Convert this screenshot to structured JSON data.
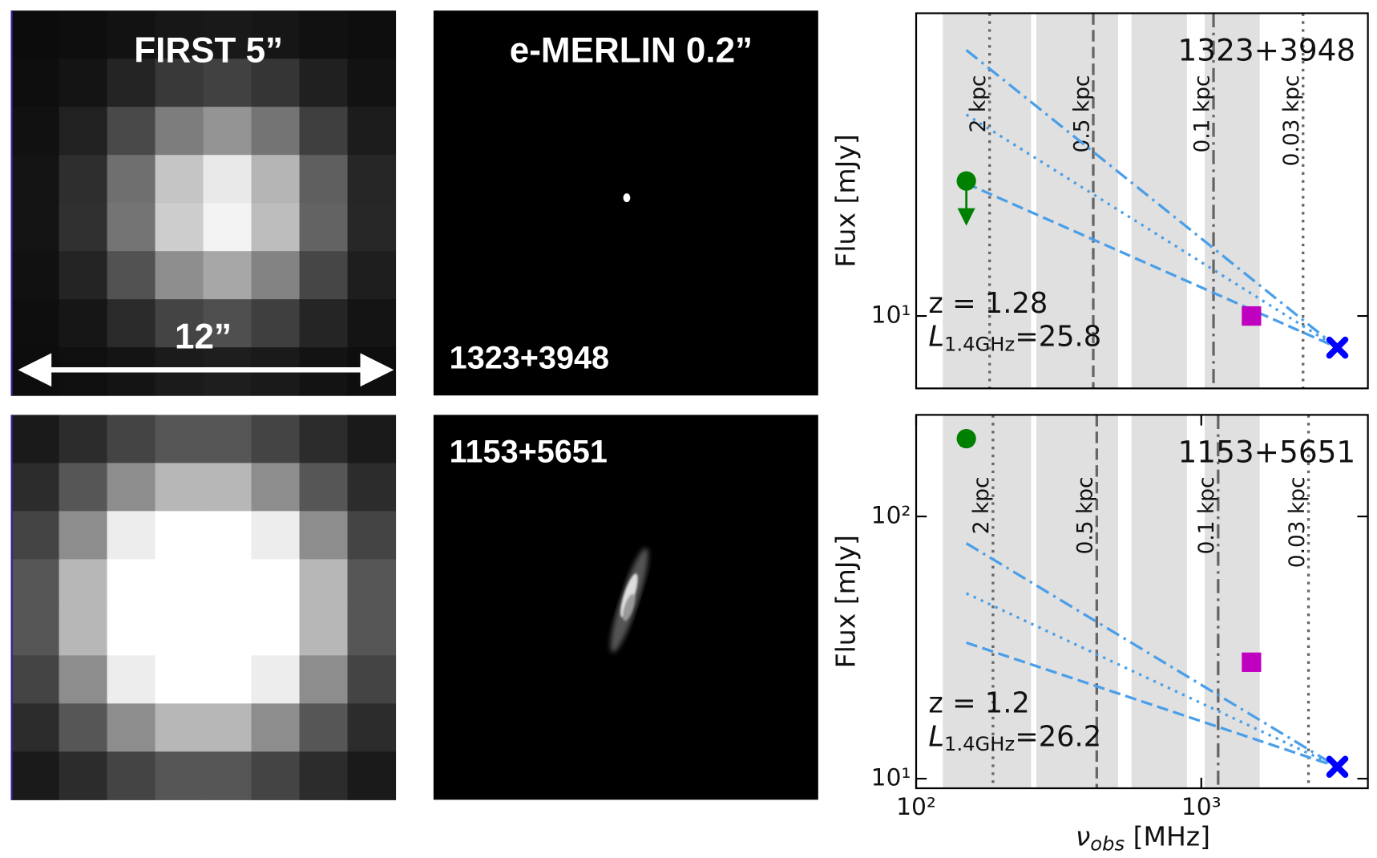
{
  "images": {
    "first_title": "FIRST 5”",
    "merlin_title": "e-MERLIN 0.2”",
    "scale_bar": "12”",
    "top_name": "1323+3948",
    "bottom_name": "1153+5651"
  },
  "chart_data": [
    {
      "type": "scatter",
      "xscale": "log",
      "yscale": "log",
      "ylabel": "Flux [mJy]",
      "label": "1323+3948",
      "redshift": "z = 1.28",
      "luminosity": {
        "symbol": "L",
        "subscript": "1.4GHz",
        "text": "=25.8"
      },
      "xlim": [
        100,
        3840
      ],
      "ylim": [
        6.17,
        75.3
      ],
      "yticks": [
        {
          "value": 10,
          "label": "10¹"
        }
      ],
      "band_color": "#e0e0e0",
      "bands": [
        [
          124,
          253
        ],
        [
          264,
          511
        ],
        [
          569,
          891
        ],
        [
          1028,
          1603
        ]
      ],
      "vlines": [
        {
          "x": 181,
          "label": "2 kpc",
          "style": "dotted"
        },
        {
          "x": 418,
          "label": "0.5 kpc",
          "style": "dashed"
        },
        {
          "x": 1104,
          "label": "0.1 kpc",
          "style": "dashdot"
        },
        {
          "x": 2275,
          "label": "0.03 kpc",
          "style": "dotted"
        }
      ],
      "series": [
        {
          "color": "#4a9fe8",
          "linestyle": "dashdot",
          "x": [
            150,
            3000
          ],
          "values": [
            58.9,
            8.1
          ]
        },
        {
          "color": "#4a9fe8",
          "linestyle": "dotted",
          "x": [
            150,
            3000
          ],
          "values": [
            38.3,
            8.1
          ]
        },
        {
          "color": "#4a9fe8",
          "linestyle": "dashed",
          "x": [
            150,
            3000
          ],
          "values": [
            24.2,
            8.1
          ]
        },
        {
          "color": "#008000",
          "marker": "circle",
          "upper_limit": true,
          "x": [
            150
          ],
          "values": [
            24.6
          ]
        },
        {
          "color": "#c000c0",
          "marker": "square",
          "x": [
            1500
          ],
          "values": [
            10.0
          ]
        },
        {
          "color": "#0000ff",
          "marker": "cross",
          "x": [
            3000
          ],
          "values": [
            8.1
          ]
        }
      ]
    },
    {
      "type": "scatter",
      "xscale": "log",
      "yscale": "log",
      "ylabel": "Flux [mJy]",
      "xlabel": {
        "symbol": "ν",
        "subscript": "obs",
        "text": " [MHz]"
      },
      "label": "1153+5651",
      "redshift": "z = 1.2",
      "luminosity": {
        "symbol": "L",
        "subscript": "1.4GHz",
        "text": "=26.2"
      },
      "xlim": [
        100,
        3840
      ],
      "ylim": [
        9.19,
        244
      ],
      "xticks": [
        {
          "value": 100,
          "label": "10²"
        },
        {
          "value": 1000,
          "label": "10³"
        }
      ],
      "yticks": [
        {
          "value": 10,
          "label": "10¹"
        },
        {
          "value": 100,
          "label": "10²"
        }
      ],
      "band_color": "#e0e0e0",
      "bands": [
        [
          124,
          253
        ],
        [
          264,
          511
        ],
        [
          569,
          891
        ],
        [
          1028,
          1603
        ]
      ],
      "vlines": [
        {
          "x": 186,
          "label": "2 kpc",
          "style": "dotted"
        },
        {
          "x": 430,
          "label": "0.5 kpc",
          "style": "dashed"
        },
        {
          "x": 1146,
          "label": "0.1 kpc",
          "style": "dashdot"
        },
        {
          "x": 2377,
          "label": "0.03 kpc",
          "style": "dotted"
        }
      ],
      "series": [
        {
          "color": "#4a9fe8",
          "linestyle": "dashdot",
          "x": [
            150,
            3000
          ],
          "values": [
            79,
            11.1
          ]
        },
        {
          "color": "#4a9fe8",
          "linestyle": "dotted",
          "x": [
            150,
            3000
          ],
          "values": [
            50.9,
            11.1
          ]
        },
        {
          "color": "#4a9fe8",
          "linestyle": "dashed",
          "x": [
            150,
            3000
          ],
          "values": [
            33.0,
            11.1
          ]
        },
        {
          "color": "#008000",
          "marker": "circle",
          "x": [
            150
          ],
          "values": [
            198
          ],
          "errors": [
            12
          ]
        },
        {
          "color": "#c000c0",
          "marker": "square",
          "x": [
            1500
          ],
          "values": [
            27.8
          ]
        },
        {
          "color": "#0000ff",
          "marker": "cross",
          "x": [
            3000
          ],
          "values": [
            11.1
          ]
        }
      ]
    }
  ]
}
